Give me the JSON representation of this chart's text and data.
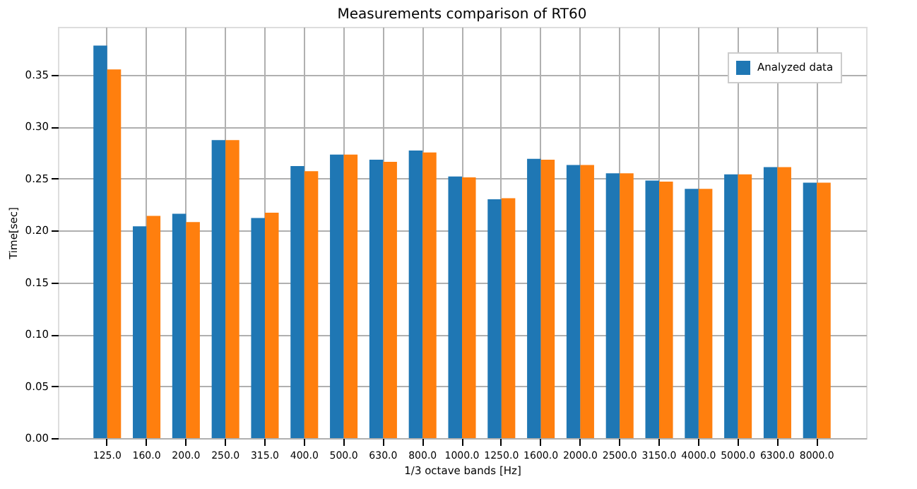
{
  "chart_data": {
    "type": "bar",
    "title": "Measurements comparison of RT60",
    "xlabel": "1/3 octave bands [Hz]",
    "ylabel": "Time[sec]",
    "categories": [
      "125.0",
      "160.0",
      "200.0",
      "250.0",
      "315.0",
      "400.0",
      "500.0",
      "630.0",
      "800.0",
      "1000.0",
      "1250.0",
      "1600.0",
      "2000.0",
      "2500.0",
      "3150.0",
      "4000.0",
      "5000.0",
      "6300.0",
      "8000.0"
    ],
    "series": [
      {
        "name": "Analyzed data",
        "color": "#1f77b4",
        "values": [
          0.378,
          0.204,
          0.216,
          0.287,
          0.212,
          0.262,
          0.273,
          0.268,
          0.277,
          0.252,
          0.23,
          0.269,
          0.263,
          0.255,
          0.248,
          0.24,
          0.254,
          0.261,
          0.246
        ]
      },
      {
        "color": "#ff7f0e",
        "values": [
          0.355,
          0.214,
          0.208,
          0.287,
          0.217,
          0.257,
          0.273,
          0.266,
          0.275,
          0.251,
          0.231,
          0.268,
          0.263,
          0.255,
          0.247,
          0.24,
          0.254,
          0.261,
          0.246
        ]
      }
    ],
    "ylim": [
      0,
      0.396
    ],
    "yticks": [
      {
        "value": 0,
        "label": "0.00"
      },
      0.05,
      {
        "value": 0.1,
        "label": "0.10"
      },
      0.15,
      {
        "value": 0.2,
        "label": "0.20"
      },
      0.25,
      {
        "value": 0.3,
        "label": "0.30"
      },
      0.35
    ],
    "grid": true,
    "legend": "top right"
  }
}
